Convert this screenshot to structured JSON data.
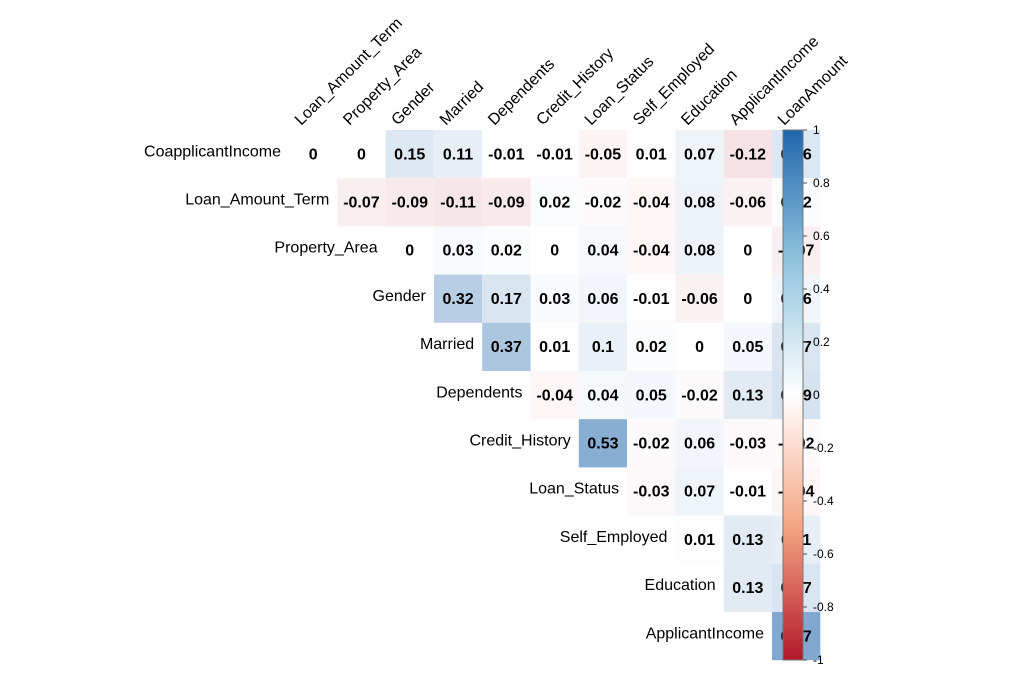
{
  "chart_data": {
    "type": "heatmap",
    "title": "",
    "columns": [
      "Loan_Amount_Term",
      "Property_Area",
      "Gender",
      "Married",
      "Dependents",
      "Credit_History",
      "Loan_Status",
      "Self_Employed",
      "Education",
      "ApplicantIncome",
      "LoanAmount"
    ],
    "rows": [
      "CoapplicantIncome",
      "Loan_Amount_Term",
      "Property_Area",
      "Gender",
      "Married",
      "Dependents",
      "Credit_History",
      "Loan_Status",
      "Self_Employed",
      "Education",
      "ApplicantIncome"
    ],
    "values": [
      [
        "0",
        "0",
        "0.15",
        "0.11",
        "-0.01",
        "-0.01",
        "-0.05",
        "0.01",
        "0.07",
        "-0.12",
        "0.16"
      ],
      [
        null,
        "-0.07",
        "-0.09",
        "-0.11",
        "-0.09",
        "0.02",
        "-0.02",
        "-0.04",
        "0.08",
        "-0.06",
        "0.02"
      ],
      [
        null,
        null,
        "0",
        "0.03",
        "0.02",
        "0",
        "0.04",
        "-0.04",
        "0.08",
        "0",
        "-0.07"
      ],
      [
        null,
        null,
        null,
        "0.32",
        "0.17",
        "0.03",
        "0.06",
        "-0.01",
        "-0.06",
        "0",
        "0.06"
      ],
      [
        null,
        null,
        null,
        null,
        "0.37",
        "0.01",
        "0.1",
        "0.02",
        "0",
        "0.05",
        "0.17"
      ],
      [
        null,
        null,
        null,
        null,
        null,
        "-0.04",
        "0.04",
        "0.05",
        "-0.02",
        "0.13",
        "0.19"
      ],
      [
        null,
        null,
        null,
        null,
        null,
        null,
        "0.53",
        "-0.02",
        "0.06",
        "-0.03",
        "-0.02"
      ],
      [
        null,
        null,
        null,
        null,
        null,
        null,
        null,
        "-0.03",
        "0.07",
        "-0.01",
        "-0.04"
      ],
      [
        null,
        null,
        null,
        null,
        null,
        null,
        null,
        null,
        "0.01",
        "0.13",
        "0.11"
      ],
      [
        null,
        null,
        null,
        null,
        null,
        null,
        null,
        null,
        null,
        "0.13",
        "0.17"
      ],
      [
        null,
        null,
        null,
        null,
        null,
        null,
        null,
        null,
        null,
        null,
        "0.57"
      ]
    ],
    "color_scale": {
      "range": [
        -1,
        1
      ],
      "ticks": [
        "1",
        "0.8",
        "0.6",
        "0.4",
        "0.2",
        "0",
        "-0.2",
        "-0.4",
        "-0.6",
        "-0.8",
        "-1"
      ],
      "negative_color": "#b2182b",
      "zero_color": "#ffffff",
      "positive_color": "#2166ac"
    },
    "legend": "right",
    "grid": false
  }
}
